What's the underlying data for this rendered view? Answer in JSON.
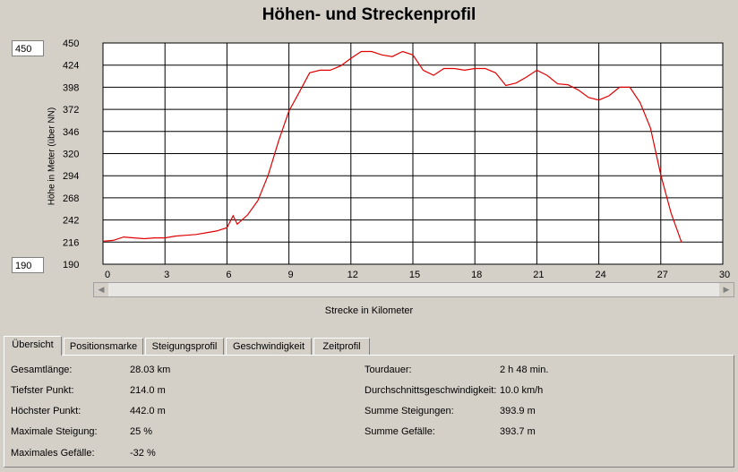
{
  "title": "Höhen- und Streckenprofil",
  "y_max_field": "450",
  "y_min_field": "190",
  "x_axis_title": "Strecke in Kilometer",
  "y_axis_title": "Höhe in Meter (über NN)",
  "tabs": [
    "Übersicht",
    "Positionsmarke",
    "Steigungsprofil",
    "Geschwindigkeit",
    "Zeitprofil"
  ],
  "active_tab": "Übersicht",
  "stats_left": [
    {
      "label": "Gesamtlänge:",
      "value": "28.03 km"
    },
    {
      "label": "Tiefster Punkt:",
      "value": "214.0 m"
    },
    {
      "label": "Höchster Punkt:",
      "value": "442.0 m"
    },
    {
      "label": "Maximale Steigung:",
      "value": "25 %"
    },
    {
      "label": "Maximales Gefälle:",
      "value": "-32 %"
    }
  ],
  "stats_right": [
    {
      "label": "Tourdauer:",
      "value": "2 h 48 min."
    },
    {
      "label": "Durchschnittsgeschwindigkeit:",
      "value": "10.0 km/h"
    },
    {
      "label": "Summe Steigungen:",
      "value": "393.9 m"
    },
    {
      "label": "Summe Gefälle:",
      "value": "393.7 m"
    }
  ],
  "colors": {
    "line": "#e00000",
    "plot_bg": "#ffffff",
    "grid": "#000000"
  },
  "chart_data": {
    "type": "line",
    "xlabel": "Strecke in Kilometer",
    "ylabel": "Höhe in Meter (über NN)",
    "xlim": [
      0,
      30
    ],
    "ylim": [
      190,
      450
    ],
    "x_ticks": [
      "0",
      "3",
      "6",
      "9",
      "12",
      "15",
      "18",
      "21",
      "24",
      "27",
      "30"
    ],
    "y_ticks": [
      "450",
      "424",
      "398",
      "372",
      "346",
      "320",
      "294",
      "268",
      "242",
      "216",
      "190"
    ],
    "grid": true,
    "series": [
      {
        "x": [
          0,
          0.5,
          1,
          1.5,
          2,
          2.5,
          3,
          3.5,
          4,
          4.5,
          5,
          5.5,
          6,
          6.3,
          6.5,
          7,
          7.5,
          8,
          8.5,
          9,
          9.5,
          10,
          10.5,
          11,
          11.5,
          12,
          12.5,
          13,
          13.5,
          14,
          14.5,
          15,
          15.5,
          16,
          16.5,
          17,
          17.5,
          18,
          18.5,
          19,
          19.5,
          20,
          20.5,
          21,
          21.5,
          22,
          22.5,
          23,
          23.5,
          24,
          24.5,
          25,
          25.5,
          26,
          26.5,
          27,
          27.5,
          28
        ],
        "y": [
          217,
          218,
          222,
          221,
          220,
          221,
          221,
          223,
          224,
          225,
          227,
          229,
          233,
          247,
          237,
          248,
          265,
          295,
          335,
          370,
          392,
          415,
          418,
          418,
          423,
          432,
          440,
          440,
          436,
          434,
          440,
          436,
          418,
          412,
          420,
          420,
          418,
          420,
          420,
          415,
          400,
          403,
          410,
          418,
          412,
          402,
          401,
          395,
          386,
          383,
          388,
          398,
          398,
          380,
          350,
          295,
          250,
          216
        ]
      }
    ]
  }
}
